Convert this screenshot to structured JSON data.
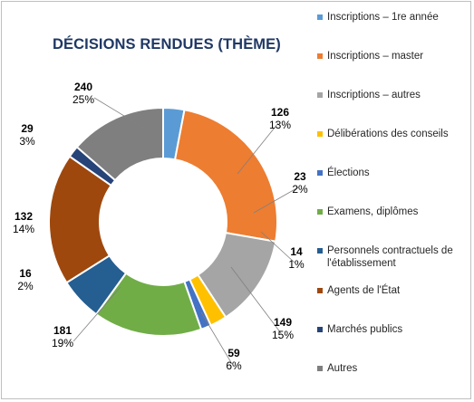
{
  "chart_data": {
    "type": "donut",
    "title": "DÉCISIONS RENDUES (THÈME)",
    "legend_position": "right",
    "slices": [
      {
        "name": "Inscriptions – 1re année",
        "value": 29,
        "percent": "3%",
        "color": "#5b9bd5"
      },
      {
        "name": "Inscriptions – master",
        "value": 240,
        "percent": "25%",
        "color": "#ed7d31"
      },
      {
        "name": "Inscriptions – autres",
        "value": 126,
        "percent": "13%",
        "color": "#a5a5a5"
      },
      {
        "name": "Délibérations des conseils",
        "value": 23,
        "percent": "2%",
        "color": "#ffc000"
      },
      {
        "name": "Élections",
        "value": 14,
        "percent": "1%",
        "color": "#4472c4"
      },
      {
        "name": "Examens, diplômes",
        "value": 149,
        "percent": "15%",
        "color": "#70ad47"
      },
      {
        "name": "Personnels contractuels de l'établissement",
        "value": 59,
        "percent": "6%",
        "color": "#255e91"
      },
      {
        "name": "Agents de l'État",
        "value": 181,
        "percent": "19%",
        "color": "#9e480e"
      },
      {
        "name": "Marchés publics",
        "value": 16,
        "percent": "2%",
        "color": "#264478"
      },
      {
        "name": "Autres",
        "value": 132,
        "percent": "14%",
        "color": "#7f7f7f"
      }
    ]
  }
}
